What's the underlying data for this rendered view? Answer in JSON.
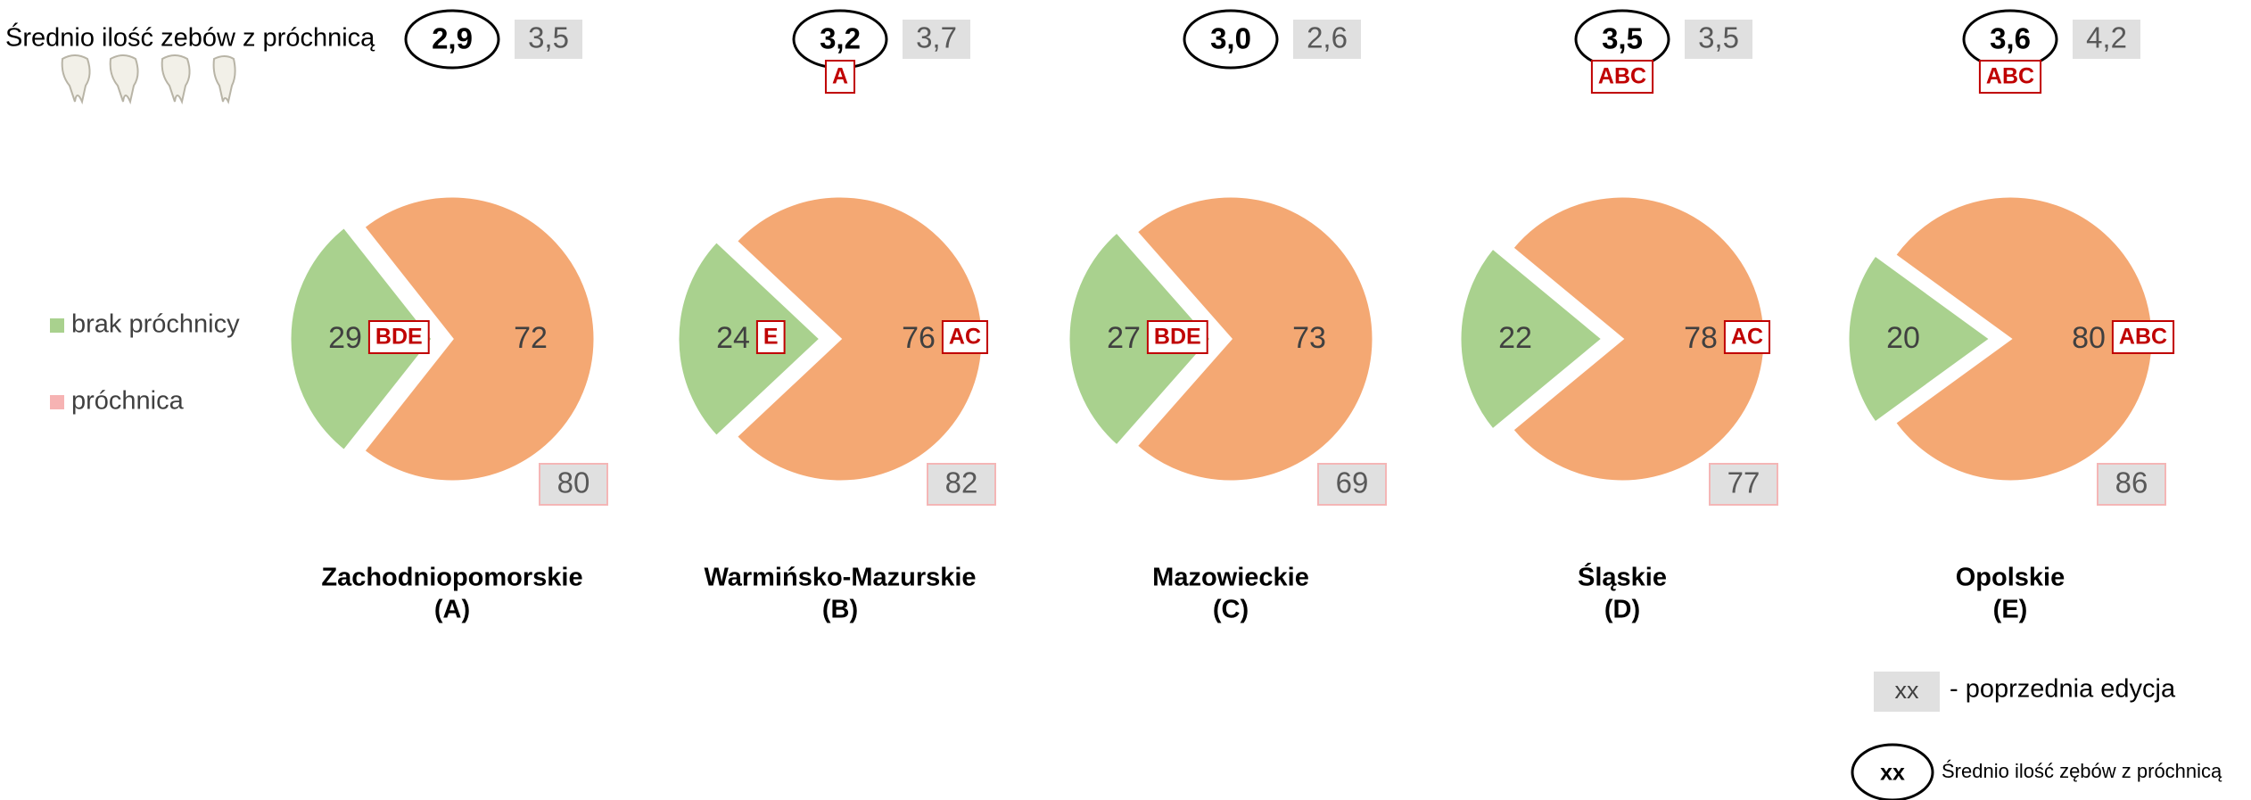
{
  "header": {
    "title": "Średnio ilość zebów z próchnicą"
  },
  "chart_data": [
    {
      "type": "pie",
      "title": "Zachodniopomorskie",
      "subtitle": "(A)",
      "categories": [
        "brak próchnicy",
        "próchnica"
      ],
      "values": [
        29,
        72
      ],
      "colors": [
        "#a9d18e",
        "#f4a873"
      ],
      "legend_colors": [
        "#a9d18e",
        "#f6b3b3"
      ],
      "significance": [
        "BDE",
        null
      ],
      "mean": {
        "value": 2.9,
        "label": "2,9"
      },
      "mean_significance": null,
      "previous_mean": {
        "value": 3.5,
        "label": "3,5"
      },
      "previous_caries": 80
    },
    {
      "type": "pie",
      "title": "Warmińsko-Mazurskie",
      "subtitle": "(B)",
      "categories": [
        "brak próchnicy",
        "próchnica"
      ],
      "values": [
        24,
        76
      ],
      "colors": [
        "#a9d18e",
        "#f4a873"
      ],
      "significance": [
        "E",
        "AC"
      ],
      "mean": {
        "value": 3.2,
        "label": "3,2"
      },
      "mean_significance": "A",
      "previous_mean": {
        "value": 3.7,
        "label": "3,7"
      },
      "previous_caries": 82
    },
    {
      "type": "pie",
      "title": "Mazowieckie",
      "subtitle": "(C)",
      "categories": [
        "brak próchnicy",
        "próchnica"
      ],
      "values": [
        27,
        73
      ],
      "colors": [
        "#a9d18e",
        "#f4a873"
      ],
      "significance": [
        "BDE",
        null
      ],
      "mean": {
        "value": 3.0,
        "label": "3,0"
      },
      "mean_significance": null,
      "previous_mean": {
        "value": 2.6,
        "label": "2,6"
      },
      "previous_caries": 69
    },
    {
      "type": "pie",
      "title": "Śląskie",
      "subtitle": "(D)",
      "categories": [
        "brak próchnicy",
        "próchnica"
      ],
      "values": [
        22,
        78
      ],
      "colors": [
        "#a9d18e",
        "#f4a873"
      ],
      "significance": [
        null,
        "AC"
      ],
      "mean": {
        "value": 3.5,
        "label": "3,5"
      },
      "mean_significance": "ABC",
      "previous_mean": {
        "value": 3.5,
        "label": "3,5"
      },
      "previous_caries": 77
    },
    {
      "type": "pie",
      "title": "Opolskie",
      "subtitle": "(E)",
      "categories": [
        "brak próchnicy",
        "próchnica"
      ],
      "values": [
        20,
        80
      ],
      "colors": [
        "#a9d18e",
        "#f4a873"
      ],
      "significance": [
        null,
        "ABC"
      ],
      "mean": {
        "value": 3.6,
        "label": "3,6"
      },
      "mean_significance": "ABC",
      "previous_mean": {
        "value": 4.2,
        "label": "4,2"
      },
      "previous_caries": 86
    }
  ],
  "legend": {
    "previous_sample": "xx",
    "previous_label": "- poprzednia edycja",
    "mean_sample": "xx",
    "mean_label": "Średnio ilość zębów z próchnicą"
  }
}
